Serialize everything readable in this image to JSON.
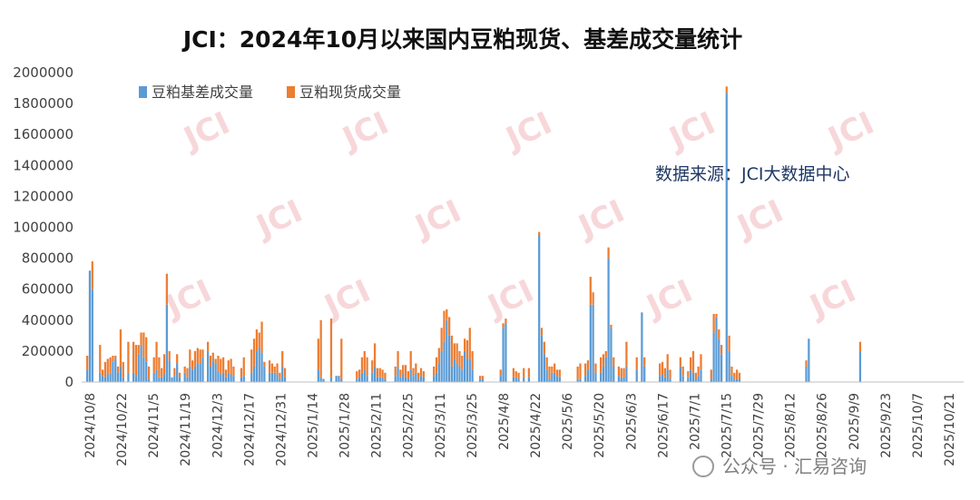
{
  "chart_data": {
    "type": "bar",
    "stacked": true,
    "title": "JCI：2024年10月以来国内豆粕现货、基差成交量统计",
    "ylim": [
      0,
      2000000
    ],
    "yticks": [
      0,
      200000,
      400000,
      600000,
      800000,
      1000000,
      1200000,
      1400000,
      1600000,
      1800000,
      2000000
    ],
    "legend_position": "top-left",
    "xtick_labels": [
      "2024/10/8",
      "2024/10/22",
      "2024/11/5",
      "2024/11/19",
      "2024/12/3",
      "2024/12/17",
      "2024/12/31",
      "2025/1/14",
      "2025/1/28",
      "2025/2/11",
      "2025/2/25",
      "2025/3/11",
      "2025/3/25",
      "2025/4/8",
      "2025/4/22",
      "2025/5/6",
      "2025/5/20",
      "2025/6/3",
      "2025/6/17",
      "2025/7/1",
      "2025/7/15",
      "2025/7/29",
      "2025/8/12",
      "2025/8/26",
      "2025/9/9",
      "2025/9/23",
      "2025/10/7",
      "2025/10/21"
    ],
    "series": [
      {
        "name": "豆粕基差成交量",
        "color": "#5b9bd5",
        "values": [
          80000,
          720000,
          600000,
          0,
          0,
          60000,
          40000,
          30000,
          50000,
          60000,
          130000,
          150000,
          60000,
          100000,
          30000,
          0,
          60000,
          0,
          60000,
          40000,
          180000,
          240000,
          160000,
          130000,
          20000,
          0,
          60000,
          80000,
          30000,
          30000,
          50000,
          500000,
          140000,
          30000,
          40000,
          120000,
          30000,
          0,
          60000,
          30000,
          100000,
          80000,
          100000,
          120000,
          120000,
          160000,
          0,
          200000,
          100000,
          140000,
          120000,
          70000,
          50000,
          60000,
          30000,
          60000,
          50000,
          40000,
          0,
          0,
          30000,
          40000,
          0,
          0,
          60000,
          100000,
          200000,
          220000,
          190000,
          100000,
          0,
          60000,
          60000,
          60000,
          50000,
          20000,
          100000,
          30000,
          0,
          0,
          0,
          0,
          0,
          0,
          0,
          0,
          0,
          0,
          0,
          0,
          80000,
          30000,
          20000,
          0,
          0,
          30000,
          0,
          40000,
          40000,
          20000,
          0,
          0,
          0,
          0,
          0,
          20000,
          30000,
          60000,
          80000,
          40000,
          0,
          60000,
          100000,
          30000,
          30000,
          30000,
          20000,
          0,
          0,
          0,
          40000,
          100000,
          30000,
          50000,
          30000,
          20000,
          80000,
          40000,
          60000,
          20000,
          40000,
          30000,
          0,
          0,
          0,
          40000,
          60000,
          120000,
          200000,
          260000,
          400000,
          300000,
          100000,
          150000,
          120000,
          100000,
          80000,
          200000,
          150000,
          150000,
          80000,
          0,
          0,
          20000,
          20000,
          0,
          0,
          0,
          0,
          0,
          0,
          40000,
          350000,
          380000,
          0,
          0,
          30000,
          30000,
          20000,
          0,
          30000,
          0,
          30000,
          0,
          0,
          0,
          950000,
          300000,
          180000,
          80000,
          20000,
          60000,
          60000,
          40000,
          30000,
          0,
          0,
          0,
          0,
          0,
          0,
          20000,
          20000,
          0,
          40000,
          80000,
          500000,
          500000,
          60000,
          0,
          60000,
          100000,
          160000,
          800000,
          350000,
          100000,
          0,
          40000,
          30000,
          30000,
          100000,
          0,
          0,
          0,
          80000,
          0,
          450000,
          100000,
          0,
          0,
          0,
          0,
          0,
          40000,
          50000,
          30000,
          80000,
          20000,
          0,
          0,
          0,
          100000,
          40000,
          0,
          30000,
          80000,
          60000,
          20000,
          40000,
          80000,
          0,
          0,
          0,
          20000,
          320000,
          420000,
          280000,
          180000,
          0,
          1870000,
          200000,
          40000,
          20000,
          20000,
          20000,
          0,
          0,
          0,
          0,
          0,
          0,
          0,
          0,
          0,
          0,
          0,
          0,
          0,
          0,
          0,
          0,
          0,
          0,
          0,
          0,
          0,
          0,
          0,
          0,
          0,
          100000,
          280000,
          0,
          0,
          0,
          0,
          0,
          0,
          0,
          0,
          0,
          0,
          0,
          0,
          0,
          0,
          0,
          0,
          0,
          0,
          0,
          200000,
          0,
          0,
          0,
          0,
          0,
          0,
          0,
          0,
          0,
          0,
          0,
          0,
          0,
          0,
          0,
          0,
          0,
          0,
          0,
          0,
          0,
          0,
          0,
          0,
          0,
          0,
          0,
          0,
          0,
          0,
          0,
          0,
          0,
          0,
          0,
          0,
          0,
          0,
          0
        ]
      },
      {
        "name": "豆粕现货成交量",
        "color": "#ed7d31",
        "values": [
          90000,
          0,
          180000,
          0,
          0,
          180000,
          40000,
          100000,
          100000,
          100000,
          40000,
          20000,
          40000,
          240000,
          100000,
          0,
          200000,
          0,
          200000,
          200000,
          60000,
          80000,
          160000,
          160000,
          80000,
          0,
          100000,
          180000,
          130000,
          60000,
          130000,
          200000,
          60000,
          0,
          50000,
          60000,
          30000,
          0,
          40000,
          60000,
          110000,
          60000,
          100000,
          100000,
          90000,
          50000,
          0,
          60000,
          70000,
          50000,
          30000,
          100000,
          100000,
          100000,
          50000,
          80000,
          100000,
          60000,
          0,
          0,
          60000,
          120000,
          0,
          0,
          150000,
          180000,
          140000,
          100000,
          200000,
          30000,
          0,
          80000,
          60000,
          40000,
          70000,
          40000,
          100000,
          60000,
          0,
          0,
          0,
          0,
          0,
          0,
          0,
          0,
          0,
          0,
          0,
          0,
          200000,
          370000,
          0,
          0,
          0,
          380000,
          0,
          0,
          0,
          260000,
          0,
          0,
          0,
          0,
          0,
          50000,
          50000,
          100000,
          120000,
          120000,
          0,
          80000,
          150000,
          60000,
          60000,
          50000,
          40000,
          0,
          0,
          0,
          60000,
          100000,
          50000,
          60000,
          80000,
          50000,
          120000,
          50000,
          60000,
          40000,
          50000,
          40000,
          0,
          0,
          0,
          60000,
          100000,
          100000,
          150000,
          200000,
          70000,
          120000,
          200000,
          100000,
          130000,
          100000,
          90000,
          80000,
          120000,
          200000,
          120000,
          0,
          0,
          20000,
          20000,
          0,
          0,
          0,
          0,
          0,
          0,
          40000,
          30000,
          30000,
          0,
          0,
          60000,
          40000,
          40000,
          0,
          60000,
          0,
          60000,
          0,
          0,
          0,
          20000,
          50000,
          80000,
          80000,
          80000,
          40000,
          60000,
          40000,
          50000,
          0,
          0,
          0,
          0,
          0,
          0,
          80000,
          100000,
          0,
          80000,
          60000,
          180000,
          80000,
          60000,
          0,
          100000,
          80000,
          40000,
          70000,
          20000,
          60000,
          0,
          60000,
          60000,
          60000,
          160000,
          0,
          0,
          0,
          80000,
          0,
          0,
          60000,
          0,
          0,
          0,
          0,
          0,
          80000,
          80000,
          60000,
          100000,
          60000,
          0,
          0,
          0,
          60000,
          60000,
          0,
          40000,
          80000,
          140000,
          40000,
          60000,
          100000,
          0,
          0,
          0,
          60000,
          120000,
          20000,
          60000,
          60000,
          0,
          40000,
          100000,
          60000,
          40000,
          60000,
          40000,
          0,
          0,
          0,
          0,
          0,
          0,
          0,
          0,
          0,
          0,
          0,
          0,
          0,
          0,
          0,
          0,
          0,
          0,
          0,
          0,
          0,
          0,
          0,
          0,
          0,
          40000,
          0,
          0,
          0,
          0,
          0,
          0,
          0,
          0,
          0,
          0,
          0,
          0,
          0,
          0,
          0,
          0,
          0,
          0,
          0,
          0,
          60000,
          0,
          0,
          0,
          0,
          0,
          0,
          0,
          0,
          0,
          0,
          0,
          0,
          0,
          0,
          0,
          0,
          0,
          0,
          0,
          0,
          0,
          0,
          0,
          0,
          0,
          0,
          0,
          0,
          0,
          0,
          0,
          0,
          0,
          0,
          0,
          0,
          0,
          0,
          0
        ]
      }
    ]
  },
  "annotation": "数据来源：JCI大数据中心",
  "watermark": "JCI",
  "footer": "公众号 · 汇易咨询"
}
